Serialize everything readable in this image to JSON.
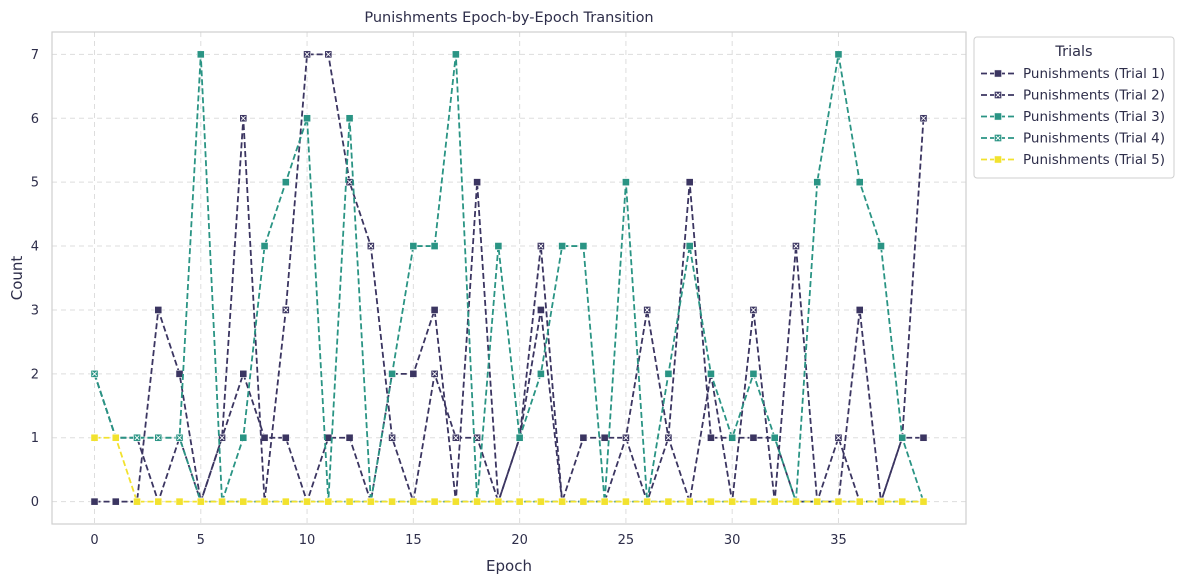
{
  "chart_data": {
    "type": "line",
    "title": "Punishments Epoch-by-Epoch Transition",
    "xlabel": "Epoch",
    "ylabel": "Count",
    "xlim": [
      -2,
      41
    ],
    "ylim": [
      -0.35,
      7.35
    ],
    "x_ticks": [
      0,
      5,
      10,
      15,
      20,
      25,
      30,
      35
    ],
    "y_ticks": [
      0,
      1,
      2,
      3,
      4,
      5,
      6,
      7
    ],
    "grid": true,
    "legend": {
      "title": "Trials",
      "placement": "outside top-right"
    },
    "x": [
      0,
      1,
      2,
      3,
      4,
      5,
      6,
      7,
      8,
      9,
      10,
      11,
      12,
      13,
      14,
      15,
      16,
      17,
      18,
      19,
      20,
      21,
      22,
      23,
      24,
      25,
      26,
      27,
      28,
      29,
      30,
      31,
      32,
      33,
      34,
      35,
      36,
      37,
      38,
      39
    ],
    "series": [
      {
        "name": "Punishments (Trial 1)",
        "color": "#3b3561",
        "marker": "square",
        "values": [
          0,
          0,
          0,
          3,
          2,
          0,
          1,
          2,
          1,
          1,
          0,
          1,
          1,
          0,
          2,
          2,
          3,
          0,
          5,
          0,
          1,
          3,
          0,
          1,
          1,
          1,
          0,
          1,
          5,
          1,
          1,
          1,
          1,
          0,
          0,
          0,
          3,
          0,
          1,
          1
        ]
      },
      {
        "name": "Punishments (Trial 2)",
        "color": "#3b3561",
        "marker": "square-x",
        "values": [
          2,
          1,
          1,
          0,
          1,
          0,
          1,
          6,
          0,
          3,
          7,
          7,
          5,
          4,
          1,
          0,
          2,
          1,
          1,
          0,
          1,
          4,
          0,
          0,
          0,
          1,
          3,
          1,
          0,
          2,
          0,
          3,
          0,
          4,
          0,
          1,
          0,
          0,
          1,
          6
        ]
      },
      {
        "name": "Punishments (Trial 3)",
        "color": "#2a9484",
        "marker": "square",
        "values": [
          2,
          1,
          1,
          1,
          1,
          7,
          0,
          1,
          4,
          5,
          6,
          0,
          6,
          0,
          2,
          4,
          4,
          7,
          0,
          4,
          1,
          2,
          4,
          4,
          0,
          5,
          0,
          2,
          4,
          2,
          1,
          2,
          1,
          0,
          5,
          7,
          5,
          4,
          1,
          0
        ]
      },
      {
        "name": "Punishments (Trial 4)",
        "color": "#2a9484",
        "marker": "square-x",
        "values": [
          2,
          1,
          1,
          1,
          1,
          0,
          0,
          0,
          0,
          0,
          0,
          0,
          0,
          0,
          0,
          0,
          0,
          0,
          0,
          0,
          0,
          0,
          0,
          0,
          0,
          0,
          0,
          0,
          0,
          0,
          0,
          0,
          0,
          0,
          0,
          0,
          0,
          0,
          0,
          0
        ]
      },
      {
        "name": "Punishments (Trial 5)",
        "color": "#f2e22e",
        "marker": "square",
        "values": [
          1,
          1,
          0,
          0,
          0,
          0,
          0,
          0,
          0,
          0,
          0,
          0,
          0,
          0,
          0,
          0,
          0,
          0,
          0,
          0,
          0,
          0,
          0,
          0,
          0,
          0,
          0,
          0,
          0,
          0,
          0,
          0,
          0,
          0,
          0,
          0,
          0,
          0,
          0,
          0
        ]
      }
    ]
  }
}
